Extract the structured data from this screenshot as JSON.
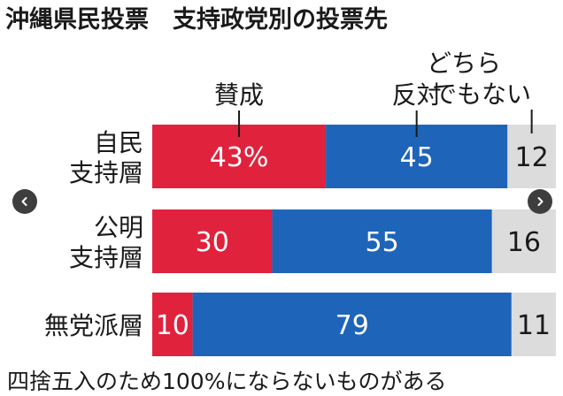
{
  "chart_data": {
    "type": "bar",
    "stacked": true,
    "orientation": "horizontal",
    "title": "沖縄県民投票　支持政党別の投票先",
    "categories": [
      "自民支持層",
      "公明支持層",
      "無党派層"
    ],
    "category_lines": [
      [
        "自民",
        "支持層"
      ],
      [
        "公明",
        "支持層"
      ],
      [
        "無党派層"
      ]
    ],
    "series": [
      {
        "name": "賛成",
        "values": [
          43,
          30,
          10
        ],
        "labels": [
          "43%",
          "30",
          "10"
        ],
        "color": "#e0223d"
      },
      {
        "name": "反対",
        "values": [
          45,
          55,
          79
        ],
        "labels": [
          "45",
          "55",
          "79"
        ],
        "color": "#1e64b8"
      },
      {
        "name": "どちらでもない",
        "name_lines": [
          "どちら",
          "でもない"
        ],
        "values": [
          12,
          16,
          11
        ],
        "labels": [
          "12",
          "16",
          "11"
        ],
        "color": "#dcdcdc"
      }
    ],
    "footnote": "四捨五入のため100%にならないものがある",
    "grid": false
  },
  "colors": {
    "text": "#1a1a1a",
    "label_on_dark": "#ffffff",
    "nav": "#3e3e3e"
  },
  "nav": {
    "prev_icon": "chevron-left-icon",
    "next_icon": "chevron-right-icon"
  }
}
